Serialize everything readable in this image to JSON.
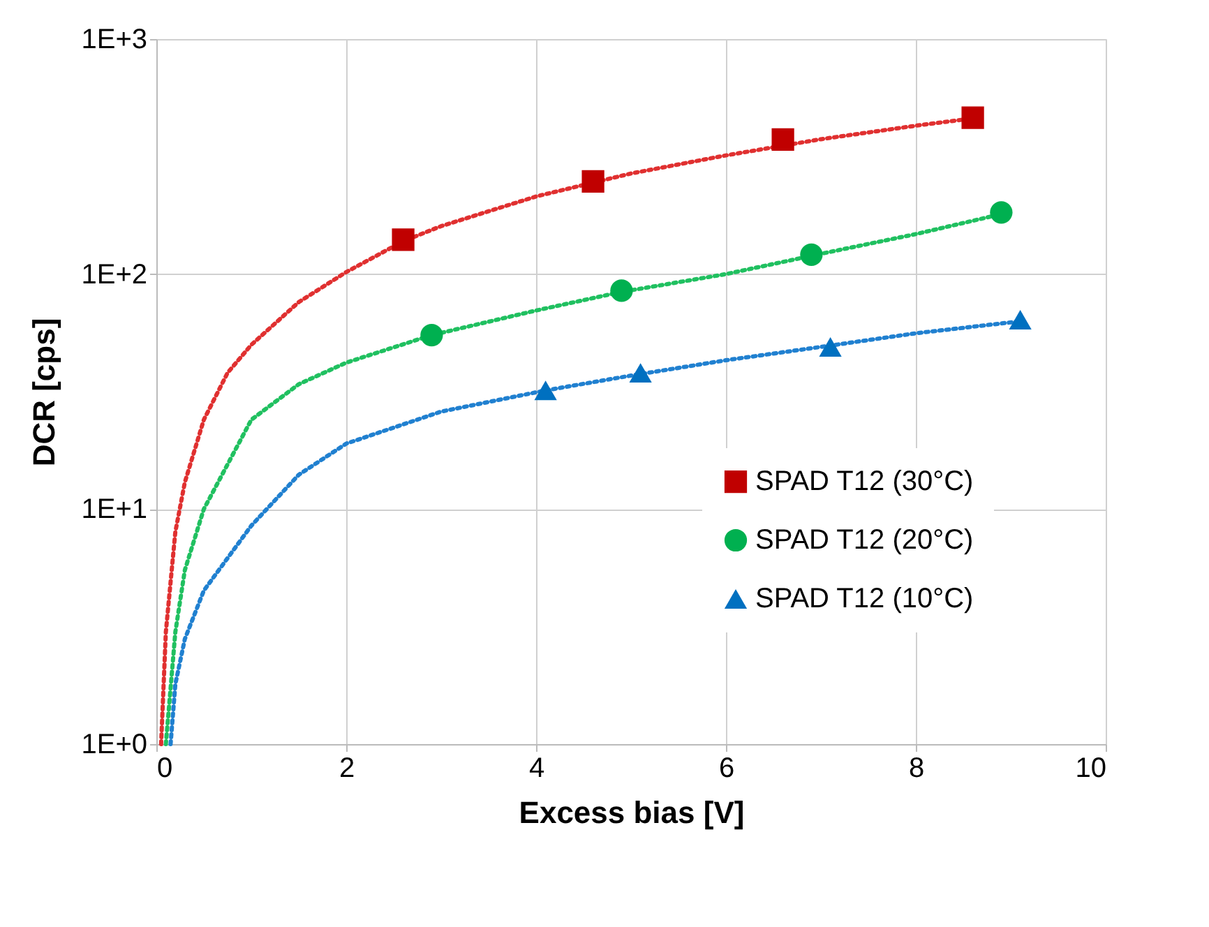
{
  "chart_data": {
    "type": "scatter",
    "xlabel": "Excess bias   [V]",
    "ylabel": "DCR  [cps]",
    "log": "y",
    "xlim": [
      0,
      10
    ],
    "xticks": [
      0,
      2,
      4,
      6,
      8,
      10
    ],
    "ylim": [
      1,
      1000
    ],
    "yticks": [
      {
        "value": 1,
        "label": "1E+0"
      },
      {
        "value": 10,
        "label": "1E+1"
      },
      {
        "value": 100,
        "label": "1E+2"
      },
      {
        "value": 1000,
        "label": "1E+3"
      }
    ],
    "grid": true,
    "legend": "bottom right",
    "series": [
      {
        "type": "line",
        "color": "#e03030",
        "line_style": "dotted",
        "marker": "none",
        "x": [
          0.05,
          0.1,
          0.2,
          0.3,
          0.5,
          0.75,
          1,
          1.5,
          2,
          2.6,
          3,
          4,
          5,
          6,
          7,
          8,
          8.6
        ],
        "values": [
          1,
          3,
          8,
          13,
          24,
          38,
          50,
          76,
          102,
          138,
          160,
          214,
          268,
          320,
          375,
          428,
          460
        ]
      },
      {
        "type": "line",
        "color": "#20c060",
        "line_style": "dotted",
        "marker": "none",
        "x": [
          0.1,
          0.2,
          0.3,
          0.5,
          1,
          1.5,
          2,
          2.9,
          4,
          4.9,
          6,
          7,
          8,
          8.9
        ],
        "values": [
          1,
          3,
          5.5,
          10,
          24,
          34,
          42,
          55,
          70,
          84,
          100,
          122,
          148,
          180
        ]
      },
      {
        "type": "line",
        "color": "#2080d0",
        "line_style": "dotted",
        "marker": "none",
        "x": [
          0.15,
          0.2,
          0.3,
          0.5,
          1,
          1.5,
          2,
          3,
          4.1,
          5,
          6,
          7,
          8,
          9.1
        ],
        "values": [
          1,
          1.8,
          2.8,
          4.5,
          8.5,
          14,
          19,
          26,
          32,
          37,
          43,
          49,
          56,
          63
        ]
      },
      {
        "name": "SPAD T12 (30°C)",
        "color": "#c00000",
        "marker": "square",
        "x": [
          2.6,
          4.6,
          6.6,
          8.6
        ],
        "values": [
          140,
          248,
          374,
          463
        ]
      },
      {
        "name": "SPAD T12 (20°C)",
        "color": "#00b050",
        "marker": "circle",
        "x": [
          2.9,
          4.9,
          6.9,
          8.9
        ],
        "values": [
          55,
          85,
          121,
          183
        ]
      },
      {
        "name": "SPAD T12 (10°C)",
        "color": "#0070c0",
        "marker": "triangle",
        "x": [
          4.1,
          5.1,
          7.1,
          9.1
        ],
        "values": [
          32,
          38,
          49,
          64
        ]
      }
    ]
  }
}
